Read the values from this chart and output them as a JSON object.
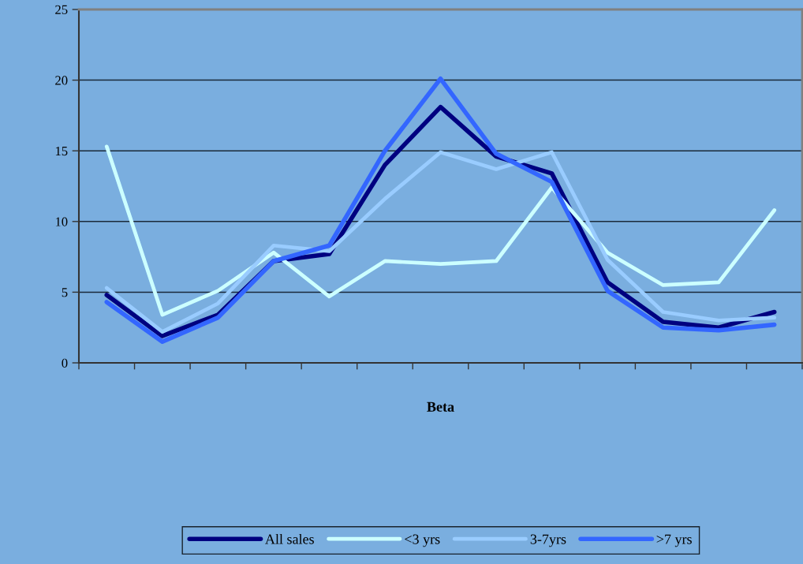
{
  "chart_data": {
    "type": "line",
    "xlabel": "Beta",
    "categories": [
      null,
      null,
      null,
      null,
      null,
      null,
      null,
      null,
      null,
      null,
      null,
      null,
      null
    ],
    "series": [
      {
        "name": "All sales",
        "color": "#000080",
        "values": [
          4.8,
          1.9,
          3.4,
          7.2,
          7.7,
          14.0,
          18.1,
          14.6,
          13.4,
          5.7,
          2.9,
          2.5,
          3.6
        ]
      },
      {
        "name": "<3 yrs",
        "color": "#ccffff",
        "values": [
          15.3,
          3.4,
          5.1,
          7.8,
          4.7,
          7.2,
          7.0,
          7.2,
          12.4,
          7.8,
          5.5,
          5.7,
          10.8
        ]
      },
      {
        "name": "3-7yrs",
        "color": "#99ccff",
        "values": [
          5.3,
          2.2,
          4.2,
          8.3,
          7.9,
          11.6,
          14.9,
          13.7,
          14.9,
          7.3,
          3.6,
          3.0,
          3.2
        ]
      },
      {
        "name": ">7 yrs",
        "color": "#3366ff",
        "values": [
          4.3,
          1.5,
          3.2,
          7.2,
          8.3,
          15.0,
          20.1,
          14.8,
          12.8,
          5.1,
          2.5,
          2.3,
          2.7
        ]
      }
    ],
    "ylim": [
      0,
      25
    ],
    "yticks": [
      0,
      5,
      10,
      15,
      20,
      25
    ],
    "grid": "y",
    "legend": "bottom",
    "tick_labels": "y",
    "marker": "none",
    "line_style": "solid"
  }
}
